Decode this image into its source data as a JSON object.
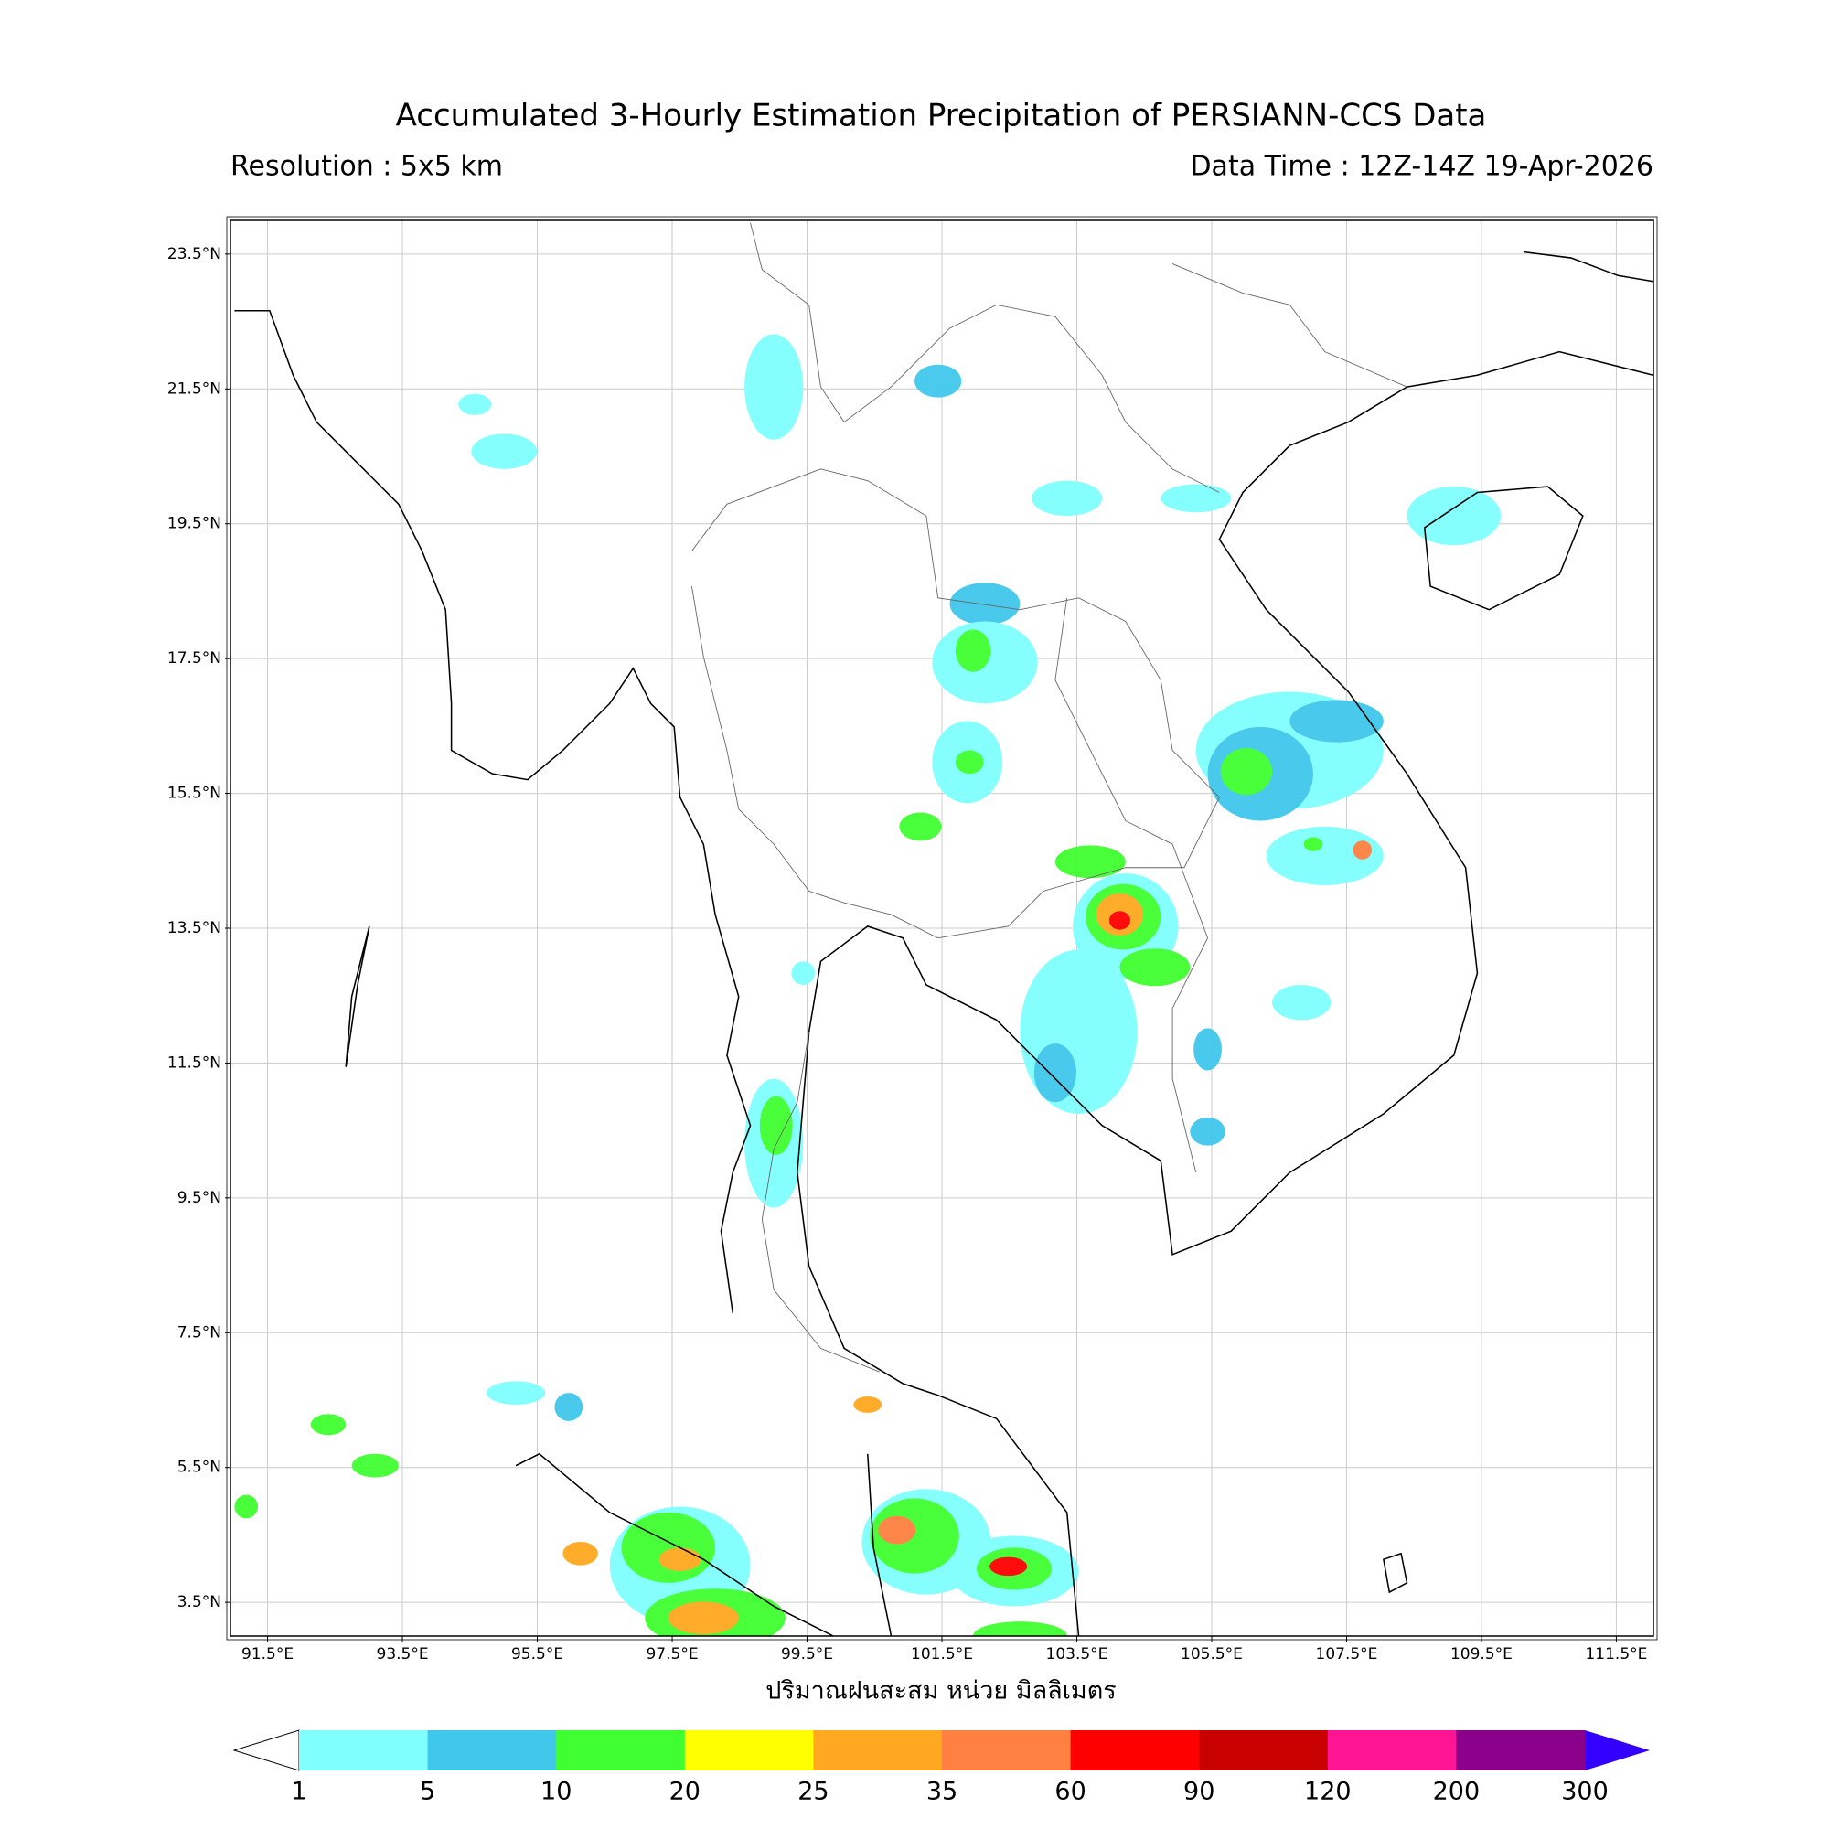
{
  "title": "Accumulated 3-Hourly Estimation Precipitation of PERSIANN-CCS Data",
  "resolution": "Resolution : 5x5 km",
  "data_time": "Data Time : 12Z-14Z 19-Apr-2026",
  "map": {
    "xlim": [
      90.95,
      112.05
    ],
    "ylim": [
      3.0,
      24.0
    ],
    "xticks": [
      {
        "value": 91.5,
        "label": "91.5°E"
      },
      {
        "value": 93.5,
        "label": "93.5°E"
      },
      {
        "value": 95.5,
        "label": "95.5°E"
      },
      {
        "value": 97.5,
        "label": "97.5°E"
      },
      {
        "value": 99.5,
        "label": "99.5°E"
      },
      {
        "value": 101.5,
        "label": "101.5°E"
      },
      {
        "value": 103.5,
        "label": "103.5°E"
      },
      {
        "value": 105.5,
        "label": "105.5°E"
      },
      {
        "value": 107.5,
        "label": "107.5°E"
      },
      {
        "value": 109.5,
        "label": "109.5°E"
      },
      {
        "value": 111.5,
        "label": "111.5°E"
      }
    ],
    "yticks": [
      {
        "value": 23.5,
        "label": "23.5°N"
      },
      {
        "value": 21.5,
        "label": "21.5°N"
      },
      {
        "value": 19.5,
        "label": "19.5°N"
      },
      {
        "value": 17.5,
        "label": "17.5°N"
      },
      {
        "value": 15.5,
        "label": "15.5°N"
      },
      {
        "value": 13.5,
        "label": "13.5°N"
      },
      {
        "value": 11.5,
        "label": "11.5°N"
      },
      {
        "value": 9.5,
        "label": "9.5°N"
      },
      {
        "value": 7.5,
        "label": "7.5°N"
      },
      {
        "value": 5.5,
        "label": "5.5°N"
      },
      {
        "value": 3.5,
        "label": "3.5°N"
      }
    ]
  },
  "colorbar": {
    "label": "ปริมาณฝนสะสม หน่วย มิลลิเมตร",
    "levels": [
      1,
      5,
      10,
      20,
      25,
      35,
      60,
      90,
      120,
      200,
      300
    ],
    "colors": [
      "#80ffff",
      "#40c8ec",
      "#40ff30",
      "#ffff00",
      "#ffa820",
      "#ff8040",
      "#ff0000",
      "#c80000",
      "#ff1493",
      "#8b008b"
    ],
    "under_color": "#ffffff",
    "over_color": "#3300ff"
  }
}
